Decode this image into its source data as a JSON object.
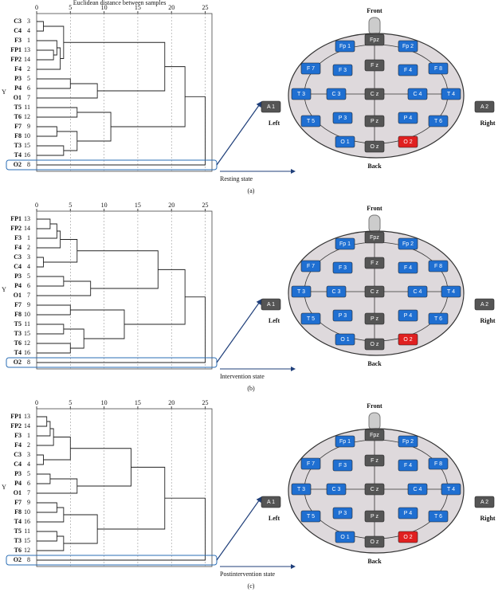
{
  "chart_data": [
    {
      "type": "dendrogram",
      "xlabel": "Euclidean distance between samples",
      "ylabel": "Y",
      "caption": "(a)",
      "state": "Resting state",
      "xlim": [
        0,
        26
      ],
      "xticks": [
        0,
        5,
        10,
        15,
        20,
        25
      ],
      "grid": true,
      "leaves": [
        {
          "name": "C3",
          "id": 3
        },
        {
          "name": "C4",
          "id": 4
        },
        {
          "name": "F3",
          "id": 1
        },
        {
          "name": "FP1",
          "id": 13
        },
        {
          "name": "FP2",
          "id": 14
        },
        {
          "name": "F4",
          "id": 2
        },
        {
          "name": "P3",
          "id": 5
        },
        {
          "name": "P4",
          "id": 6
        },
        {
          "name": "O1",
          "id": 7
        },
        {
          "name": "T5",
          "id": 11
        },
        {
          "name": "T6",
          "id": 12
        },
        {
          "name": "F7",
          "id": 9
        },
        {
          "name": "F8",
          "id": 10
        },
        {
          "name": "T3",
          "id": 15
        },
        {
          "name": "T4",
          "id": 16
        },
        {
          "name": "O2",
          "id": 8
        }
      ],
      "merges": [
        {
          "left": 0,
          "right": 1,
          "height": 1
        },
        {
          "left": 3,
          "right": 4,
          "height": 2.5
        },
        {
          "left": 2,
          "right": 17,
          "height": 3
        },
        {
          "left": 18,
          "right": 5,
          "height": 3.5
        },
        {
          "left": 16,
          "right": 19,
          "height": 4
        },
        {
          "left": 6,
          "right": 7,
          "height": 5
        },
        {
          "left": 21,
          "right": 8,
          "height": 9
        },
        {
          "left": 20,
          "right": 22,
          "height": 19
        },
        {
          "left": 11,
          "right": 12,
          "height": 3
        },
        {
          "left": 13,
          "right": 14,
          "height": 4
        },
        {
          "left": 24,
          "right": 25,
          "height": 6
        },
        {
          "left": 9,
          "right": 10,
          "height": 6
        },
        {
          "left": 27,
          "right": 26,
          "height": 11
        },
        {
          "left": 23,
          "right": 28,
          "height": 22
        },
        {
          "left": 29,
          "right": 15,
          "height": 25
        }
      ]
    },
    {
      "type": "dendrogram",
      "ylabel": "Y",
      "caption": "(b)",
      "state": "Intervention state",
      "xlim": [
        0,
        26
      ],
      "xticks": [
        0,
        5,
        10,
        15,
        20,
        25
      ],
      "grid": true,
      "leaves": [
        {
          "name": "FP1",
          "id": 13
        },
        {
          "name": "FP2",
          "id": 14
        },
        {
          "name": "F3",
          "id": 1
        },
        {
          "name": "F4",
          "id": 2
        },
        {
          "name": "C3",
          "id": 3
        },
        {
          "name": "C4",
          "id": 4
        },
        {
          "name": "P3",
          "id": 5
        },
        {
          "name": "P4",
          "id": 6
        },
        {
          "name": "O1",
          "id": 7
        },
        {
          "name": "F7",
          "id": 9
        },
        {
          "name": "F8",
          "id": 10
        },
        {
          "name": "T5",
          "id": 11
        },
        {
          "name": "T3",
          "id": 15
        },
        {
          "name": "T6",
          "id": 12
        },
        {
          "name": "T4",
          "id": 16
        },
        {
          "name": "O2",
          "id": 8
        }
      ],
      "merges": [
        {
          "left": 0,
          "right": 1,
          "height": 2
        },
        {
          "left": 16,
          "right": 2,
          "height": 3
        },
        {
          "left": 17,
          "right": 3,
          "height": 3.5
        },
        {
          "left": 4,
          "right": 5,
          "height": 1
        },
        {
          "left": 18,
          "right": 19,
          "height": 6
        },
        {
          "left": 6,
          "right": 7,
          "height": 4
        },
        {
          "left": 21,
          "right": 8,
          "height": 8
        },
        {
          "left": 20,
          "right": 22,
          "height": 18
        },
        {
          "left": 9,
          "right": 10,
          "height": 5
        },
        {
          "left": 11,
          "right": 12,
          "height": 4
        },
        {
          "left": 13,
          "right": 14,
          "height": 5
        },
        {
          "left": 25,
          "right": 26,
          "height": 7
        },
        {
          "left": 24,
          "right": 27,
          "height": 13
        },
        {
          "left": 23,
          "right": 28,
          "height": 22
        },
        {
          "left": 29,
          "right": 15,
          "height": 25
        }
      ]
    },
    {
      "type": "dendrogram",
      "ylabel": "Y",
      "caption": "(c)",
      "state": "Postintervention state",
      "xlim": [
        0,
        26
      ],
      "xticks": [
        0,
        5,
        10,
        15,
        20,
        25
      ],
      "grid": true,
      "leaves": [
        {
          "name": "FP1",
          "id": 13
        },
        {
          "name": "FP2",
          "id": 14
        },
        {
          "name": "F3",
          "id": 1
        },
        {
          "name": "F4",
          "id": 2
        },
        {
          "name": "C3",
          "id": 3
        },
        {
          "name": "C4",
          "id": 4
        },
        {
          "name": "P3",
          "id": 5
        },
        {
          "name": "P4",
          "id": 6
        },
        {
          "name": "O1",
          "id": 7
        },
        {
          "name": "F7",
          "id": 9
        },
        {
          "name": "F8",
          "id": 10
        },
        {
          "name": "T4",
          "id": 16
        },
        {
          "name": "T5",
          "id": 11
        },
        {
          "name": "T3",
          "id": 15
        },
        {
          "name": "T6",
          "id": 12
        },
        {
          "name": "O2",
          "id": 8
        }
      ],
      "merges": [
        {
          "left": 0,
          "right": 1,
          "height": 1.5
        },
        {
          "left": 16,
          "right": 2,
          "height": 2
        },
        {
          "left": 17,
          "right": 3,
          "height": 2.5
        },
        {
          "left": 4,
          "right": 5,
          "height": 1
        },
        {
          "left": 18,
          "right": 19,
          "height": 5
        },
        {
          "left": 6,
          "right": 7,
          "height": 2
        },
        {
          "left": 21,
          "right": 8,
          "height": 6
        },
        {
          "left": 20,
          "right": 22,
          "height": 14
        },
        {
          "left": 9,
          "right": 10,
          "height": 3
        },
        {
          "left": 24,
          "right": 11,
          "height": 4
        },
        {
          "left": 12,
          "right": 13,
          "height": 3
        },
        {
          "left": 26,
          "right": 14,
          "height": 4
        },
        {
          "left": 25,
          "right": 27,
          "height": 9
        },
        {
          "left": 23,
          "right": 28,
          "height": 19
        },
        {
          "left": 29,
          "right": 15,
          "height": 25
        }
      ]
    }
  ],
  "diagram": {
    "front": "Front",
    "back": "Back",
    "left": "Left",
    "right": "Right",
    "electrodes": [
      {
        "label": "Fpz",
        "color": "#555555"
      },
      {
        "label": "Fp 1",
        "color": "#1f6fd1"
      },
      {
        "label": "Fp 2",
        "color": "#1f6fd1"
      },
      {
        "label": "F 7",
        "color": "#1f6fd1"
      },
      {
        "label": "F 3",
        "color": "#1f6fd1"
      },
      {
        "label": "F z",
        "color": "#555555"
      },
      {
        "label": "F 4",
        "color": "#1f6fd1"
      },
      {
        "label": "F 8",
        "color": "#1f6fd1"
      },
      {
        "label": "T 3",
        "color": "#1f6fd1"
      },
      {
        "label": "C 3",
        "color": "#1f6fd1"
      },
      {
        "label": "C z",
        "color": "#555555"
      },
      {
        "label": "C 4",
        "color": "#1f6fd1"
      },
      {
        "label": "T 4",
        "color": "#1f6fd1"
      },
      {
        "label": "T 5",
        "color": "#1f6fd1"
      },
      {
        "label": "P 3",
        "color": "#1f6fd1"
      },
      {
        "label": "P z",
        "color": "#555555"
      },
      {
        "label": "P 4",
        "color": "#1f6fd1"
      },
      {
        "label": "T 6",
        "color": "#1f6fd1"
      },
      {
        "label": "O 1",
        "color": "#1f6fd1"
      },
      {
        "label": "O z",
        "color": "#555555"
      },
      {
        "label": "O 2",
        "color": "#e02020"
      },
      {
        "label": "A 1",
        "color": "#555555"
      },
      {
        "label": "A 2",
        "color": "#555555"
      }
    ]
  }
}
